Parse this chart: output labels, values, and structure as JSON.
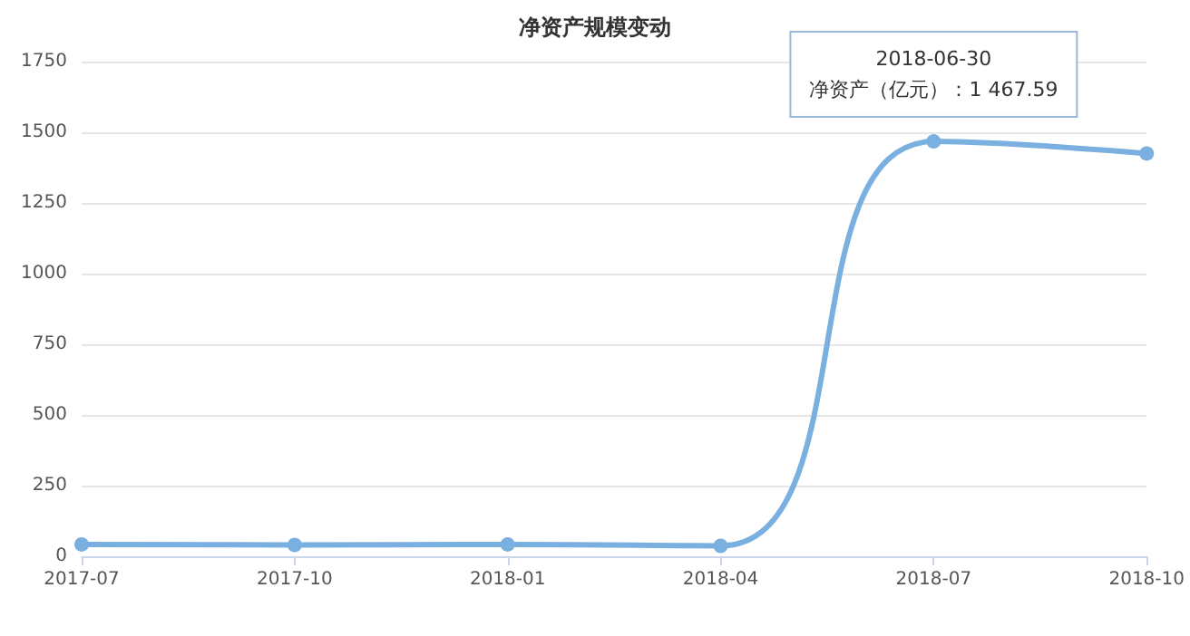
{
  "chart_data": {
    "type": "line",
    "title": "净资产规模变动",
    "categories": [
      "2017-07",
      "2017-10",
      "2018-01",
      "2018-04",
      "2018-07",
      "2018-10"
    ],
    "series": [
      {
        "color": "#7ab0e0",
        "values": [
          42,
          40,
          42,
          37,
          1467.59,
          1425
        ]
      }
    ],
    "ylim": [
      0,
      1750
    ],
    "yticks": [
      0,
      250,
      500,
      750,
      1000,
      1250,
      1500,
      1750
    ],
    "grid": "y",
    "marker": "circle",
    "line_style": "solid",
    "annotations": [
      {
        "text": "2018-06-30\n净资产（亿元）：1 467.59",
        "x": "2018-07",
        "y": 1467.59
      }
    ]
  }
}
